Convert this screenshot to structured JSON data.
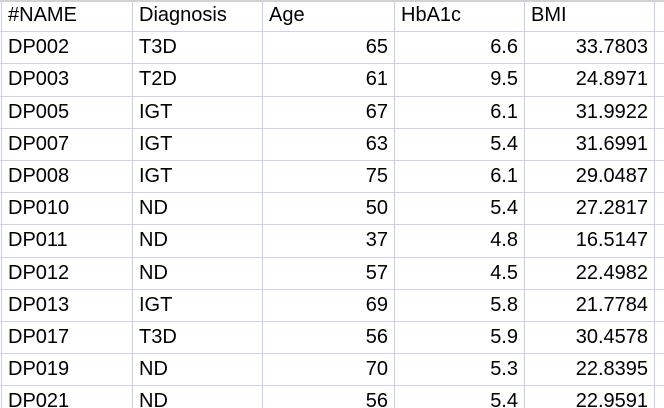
{
  "table": {
    "columns": [
      {
        "key": "name",
        "label": "#NAME"
      },
      {
        "key": "diagnosis",
        "label": "Diagnosis"
      },
      {
        "key": "age",
        "label": "Age"
      },
      {
        "key": "hba1c",
        "label": "HbA1c"
      },
      {
        "key": "bmi",
        "label": "BMI"
      }
    ],
    "rows": [
      {
        "name": "DP002",
        "diagnosis": "T3D",
        "age": "65",
        "hba1c": "6.6",
        "bmi": "33.7803"
      },
      {
        "name": "DP003",
        "diagnosis": "T2D",
        "age": "61",
        "hba1c": "9.5",
        "bmi": "24.8971"
      },
      {
        "name": "DP005",
        "diagnosis": "IGT",
        "age": "67",
        "hba1c": "6.1",
        "bmi": "31.9922"
      },
      {
        "name": "DP007",
        "diagnosis": "IGT",
        "age": "63",
        "hba1c": "5.4",
        "bmi": "31.6991"
      },
      {
        "name": "DP008",
        "diagnosis": "IGT",
        "age": "75",
        "hba1c": "6.1",
        "bmi": "29.0487"
      },
      {
        "name": "DP010",
        "diagnosis": "ND",
        "age": "50",
        "hba1c": "5.4",
        "bmi": "27.2817"
      },
      {
        "name": "DP011",
        "diagnosis": "ND",
        "age": "37",
        "hba1c": "4.8",
        "bmi": "16.5147"
      },
      {
        "name": "DP012",
        "diagnosis": "ND",
        "age": "57",
        "hba1c": "4.5",
        "bmi": "22.4982"
      },
      {
        "name": "DP013",
        "diagnosis": "IGT",
        "age": "69",
        "hba1c": "5.8",
        "bmi": "21.7784"
      },
      {
        "name": "DP017",
        "diagnosis": "T3D",
        "age": "56",
        "hba1c": "5.9",
        "bmi": "30.4578"
      },
      {
        "name": "DP019",
        "diagnosis": "ND",
        "age": "70",
        "hba1c": "5.3",
        "bmi": "22.8395"
      },
      {
        "name": "DP021",
        "diagnosis": "ND",
        "age": "56",
        "hba1c": "5.4",
        "bmi": "22.9591"
      }
    ],
    "colors": {
      "gridline": "#ccd3e4",
      "top_border": "#d2d2d2",
      "text": "#000000",
      "background": "#ffffff"
    }
  }
}
